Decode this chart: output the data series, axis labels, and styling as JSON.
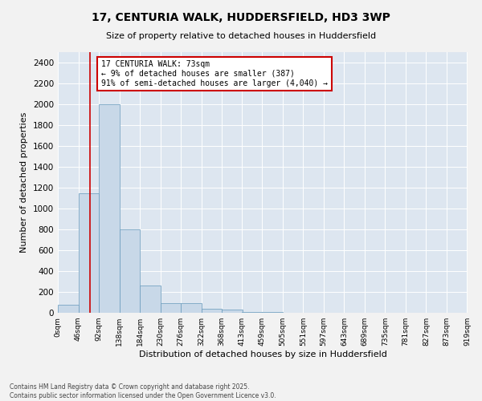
{
  "title_line1": "17, CENTURIA WALK, HUDDERSFIELD, HD3 3WP",
  "title_line2": "Size of property relative to detached houses in Huddersfield",
  "xlabel": "Distribution of detached houses by size in Huddersfield",
  "ylabel": "Number of detached properties",
  "bar_color": "#c8d8e8",
  "bar_edge_color": "#6699bb",
  "bg_color": "#dde6f0",
  "grid_color": "#ffffff",
  "annotation_box_color": "#cc0000",
  "vline_color": "#cc0000",
  "annotation_text": "17 CENTURIA WALK: 73sqm\n← 9% of detached houses are smaller (387)\n91% of semi-detached houses are larger (4,040) →",
  "property_sqm": 73,
  "footnote": "Contains HM Land Registry data © Crown copyright and database right 2025.\nContains public sector information licensed under the Open Government Licence v3.0.",
  "bin_labels": [
    "0sqm",
    "46sqm",
    "92sqm",
    "138sqm",
    "184sqm",
    "230sqm",
    "276sqm",
    "322sqm",
    "368sqm",
    "413sqm",
    "459sqm",
    "505sqm",
    "551sqm",
    "597sqm",
    "643sqm",
    "689sqm",
    "735sqm",
    "781sqm",
    "827sqm",
    "873sqm",
    "919sqm"
  ],
  "bin_edges": [
    0,
    46,
    92,
    138,
    184,
    230,
    276,
    322,
    368,
    413,
    459,
    505,
    551,
    597,
    643,
    689,
    735,
    781,
    827,
    873,
    919
  ],
  "bar_heights": [
    75,
    1150,
    2000,
    800,
    260,
    90,
    90,
    40,
    30,
    10,
    5,
    2,
    0,
    0,
    0,
    0,
    0,
    0,
    0,
    0
  ],
  "ylim": [
    0,
    2500
  ],
  "yticks": [
    0,
    200,
    400,
    600,
    800,
    1000,
    1200,
    1400,
    1600,
    1800,
    2000,
    2200,
    2400
  ],
  "fig_bg_color": "#f2f2f2",
  "figsize": [
    6.0,
    5.0
  ],
  "dpi": 100
}
